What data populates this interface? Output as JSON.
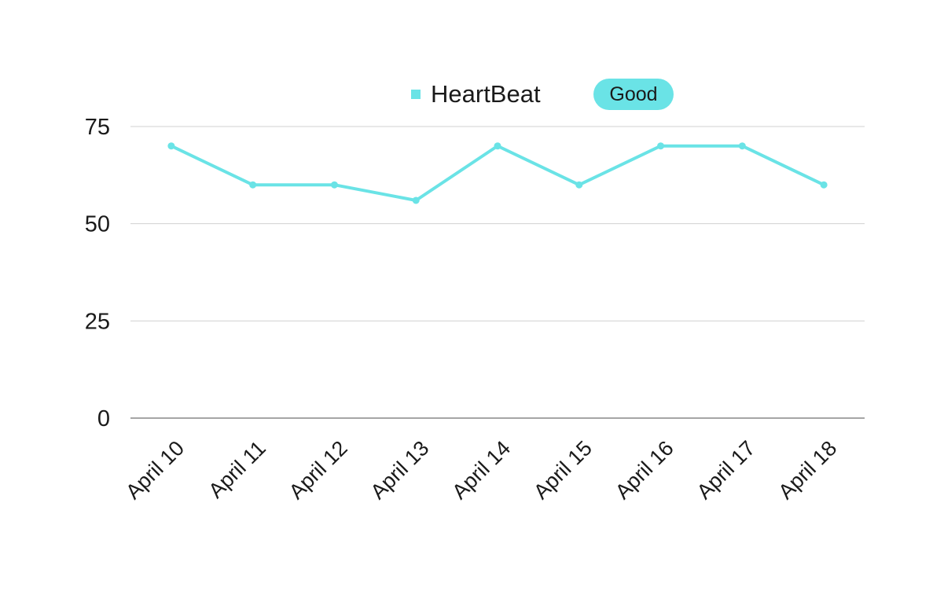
{
  "chart_data": {
    "type": "line",
    "title": "",
    "xlabel": "",
    "ylabel": "",
    "categories": [
      "April 10",
      "April 11",
      "April 12",
      "April 13",
      "April 14",
      "April 15",
      "April 16",
      "April 17",
      "April 18"
    ],
    "series": [
      {
        "name": "HeartBeat",
        "values": [
          70,
          60,
          60,
          56,
          70,
          60,
          70,
          70,
          60
        ],
        "color": "#6ae3e6"
      }
    ],
    "ylim": [
      0,
      75
    ],
    "yticks": [
      0,
      25,
      50,
      75
    ],
    "ytick_labels": [
      "0",
      "25",
      "50",
      "75"
    ],
    "grid": true,
    "legend_position": "top-center"
  },
  "badge": {
    "label": "Good",
    "color": "#6ae3e6"
  },
  "colors": {
    "grid": "#d0d0d0",
    "axis": "#888888",
    "text": "#1a1a1a"
  }
}
